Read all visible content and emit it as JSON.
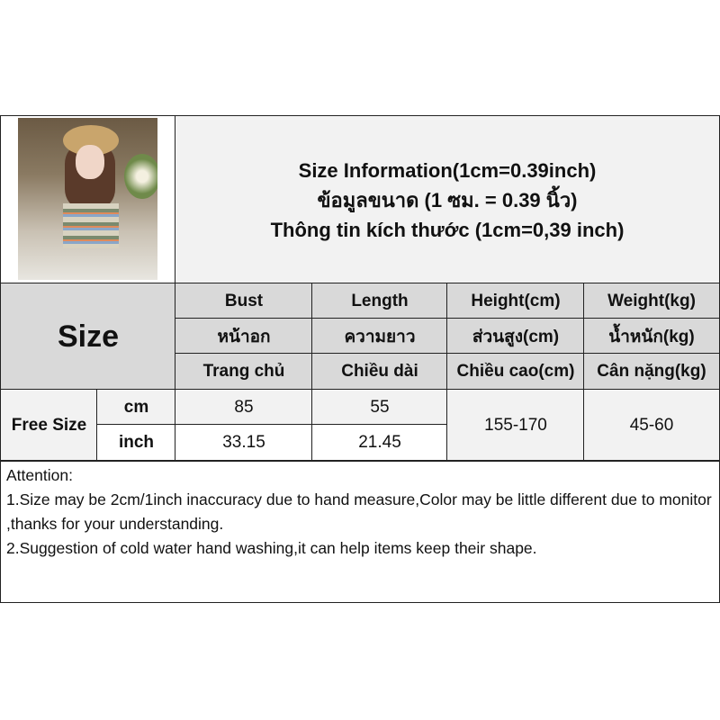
{
  "title": {
    "line1": "Size Information(1cm=0.39inch)",
    "line2": "ข้อมูลขนาด (1 ซม. = 0.39 นิ้ว)",
    "line3": "Thông tin kích thước (1cm=0,39 inch)"
  },
  "size_label": "Size",
  "columns": [
    {
      "en": "Bust",
      "th": "หน้าอก",
      "vi": "Trang chủ"
    },
    {
      "en": "Length",
      "th": "ความยาว",
      "vi": "Chiều dài"
    },
    {
      "en": "Height(cm)",
      "th": "ส่วนสูง(cm)",
      "vi": "Chiều cao(cm)"
    },
    {
      "en": "Weight(kg)",
      "th": "น้ำหนัก(kg)",
      "vi": "Cân nặng(kg)"
    }
  ],
  "row": {
    "label": "Free Size",
    "cm_label": "cm",
    "inch_label": "inch",
    "bust_cm": "85",
    "length_cm": "55",
    "bust_inch": "33.15",
    "length_inch": "21.45",
    "height": "155-170",
    "weight": "45-60"
  },
  "attention": {
    "heading": "Attention:",
    "line1": "1.Size may be 2cm/1inch inaccuracy due to hand measure,Color may be little different due to monitor ,thanks for your understanding.",
    "line2": "2.Suggestion of cold water hand washing,it can help items keep their shape."
  }
}
